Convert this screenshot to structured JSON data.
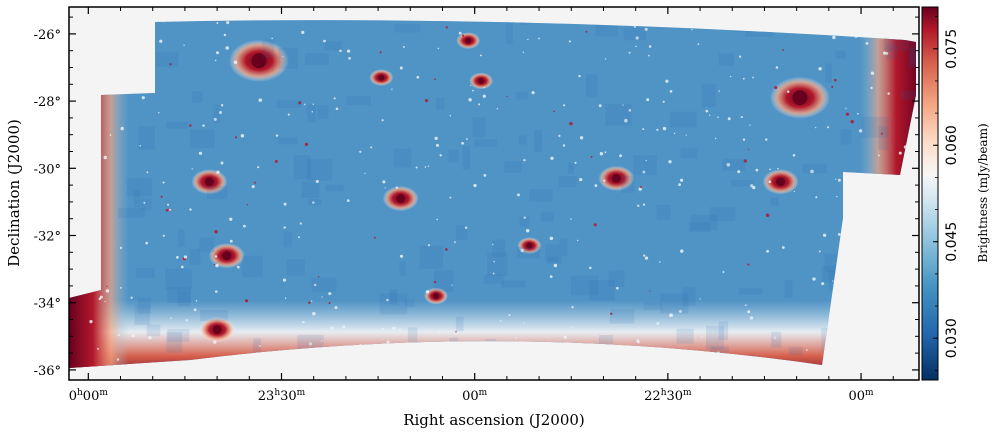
{
  "chart_data": {
    "type": "heatmap",
    "title": "",
    "xlabel": "Right ascension (J2000)",
    "ylabel": "Declination (J2000)",
    "x_ticks": [
      {
        "h": "0",
        "m": "00",
        "offset_min": 0
      },
      {
        "h": "23",
        "m": "30",
        "offset_min": 30
      },
      {
        "h": "",
        "m": "00",
        "offset_min": 60
      },
      {
        "h": "22",
        "m": "30",
        "offset_min": 90
      },
      {
        "h": "",
        "m": "00",
        "offset_min": 120
      }
    ],
    "x_range_min": [
      -3,
      129
    ],
    "y_ticks": [
      "-26°",
      "-28°",
      "-30°",
      "-32°",
      "-34°",
      "-36°"
    ],
    "y_tick_values": [
      -26,
      -28,
      -30,
      -32,
      -34,
      -36
    ],
    "ylim": [
      -36.3,
      -25.2
    ],
    "colorbar": {
      "label": "Brightness (mJy/beam)",
      "ticks": [
        "0.030",
        "0.045",
        "0.060",
        "0.075"
      ],
      "tick_values": [
        0.03,
        0.045,
        0.06,
        0.075
      ],
      "range": [
        0.0235,
        0.0815
      ],
      "colormap": "RdBu_r"
    },
    "background_level": 0.035,
    "sources": [
      {
        "ra_min": 26.5,
        "dec": -26.8,
        "level": 0.09
      },
      {
        "ra_min": 20.0,
        "dec": -34.8,
        "level": 0.085
      },
      {
        "ra_min": 21.5,
        "dec": -32.6,
        "level": 0.085
      },
      {
        "ra_min": 18.8,
        "dec": -30.4,
        "level": 0.085
      },
      {
        "ra_min": 54.0,
        "dec": -33.8,
        "level": 0.08
      },
      {
        "ra_min": 61.0,
        "dec": -27.4,
        "level": 0.08
      },
      {
        "ra_min": 59.0,
        "dec": -26.2,
        "level": 0.075
      },
      {
        "ra_min": 45.5,
        "dec": -27.3,
        "level": 0.08
      },
      {
        "ra_min": 82.0,
        "dec": -30.3,
        "level": 0.085
      },
      {
        "ra_min": 48.5,
        "dec": -30.9,
        "level": 0.085
      },
      {
        "ra_min": 107.5,
        "dec": -30.4,
        "level": 0.085
      },
      {
        "ra_min": 110.5,
        "dec": -27.9,
        "level": 0.09
      },
      {
        "ra_min": 68.5,
        "dec": -32.3,
        "level": 0.07
      }
    ],
    "colors": {
      "low": "#053061",
      "mid_low": "#4393c3",
      "mid": "#f7f7f7",
      "mid_high": "#f4a582",
      "high": "#67001f",
      "blank": "#f4f4f4"
    }
  }
}
